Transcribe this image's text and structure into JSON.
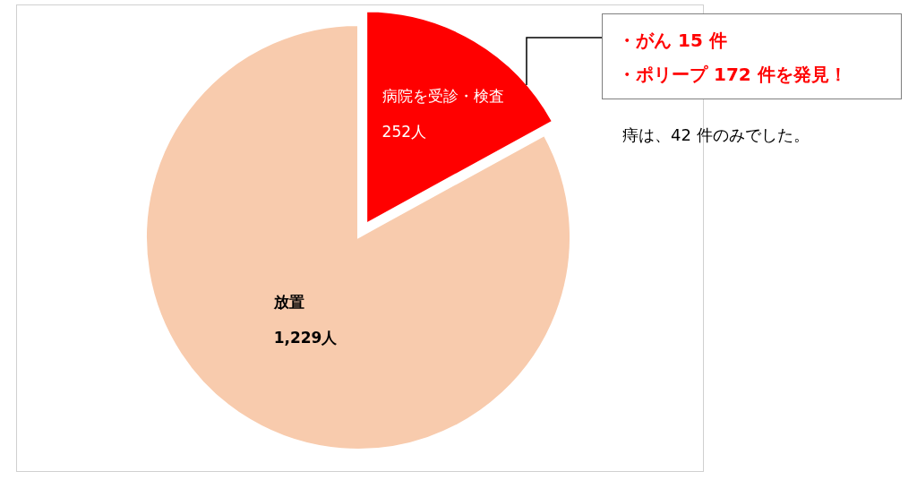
{
  "chart_data": {
    "type": "pie",
    "categories": [
      "病院を受診・検査",
      "放置"
    ],
    "values": [
      252,
      1229
    ],
    "value_labels": [
      "252人",
      "1,229人"
    ],
    "colors": [
      "#ff0000",
      "#f8cbad"
    ],
    "annotations": [
      "・がん 15 件",
      "・ポリープ 172 件を発見！",
      "痔は、42 件のみでした。"
    ]
  }
}
